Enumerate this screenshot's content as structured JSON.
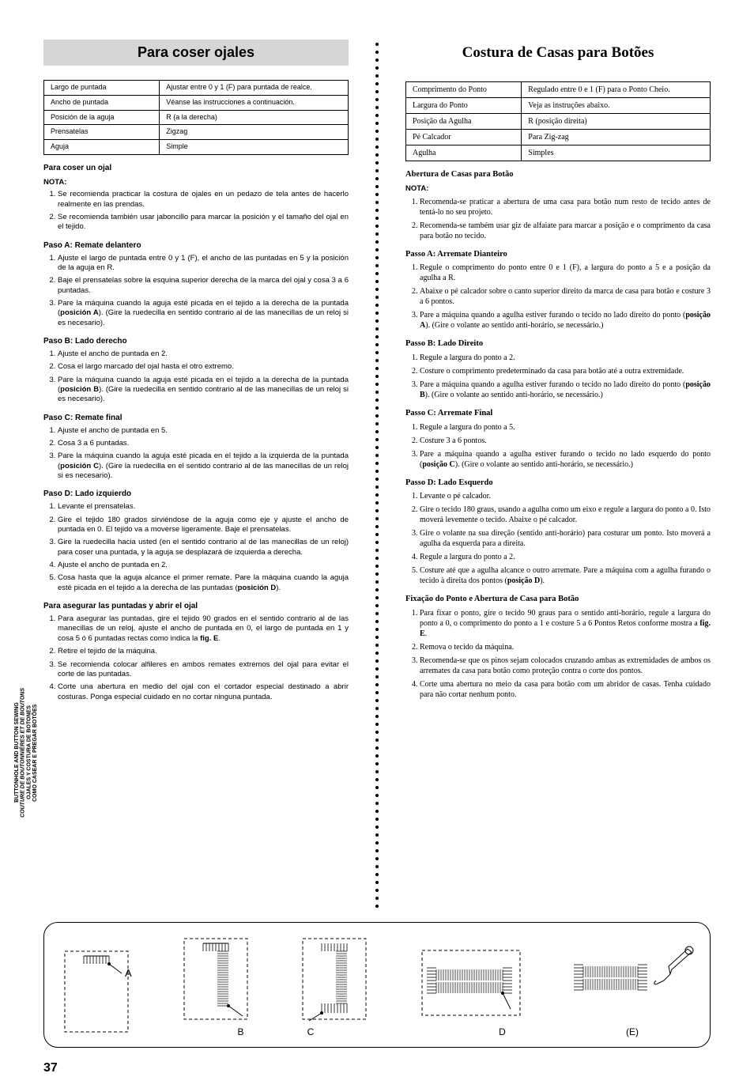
{
  "side_tab": {
    "l1": "BUTTONHOLE AND BUTTON SEWING",
    "l2": "COUTURE DE BOUTONNIÈRES ET DE BOUTONS",
    "l3": "OJALES Y COSTURA DE BOTONES",
    "l4": "COMO CASEAR E PREGAR BOTÕES"
  },
  "es": {
    "title": "Para coser ojales",
    "table": {
      "r1c1": "Largo de puntada",
      "r1c2": "Ajustar entre 0 y 1 (F) para puntada de realce.",
      "r2c1": "Ancho de puntada",
      "r2c2": "Véanse las instrucciones a continuación.",
      "r3c1": "Posición de la aguja",
      "r3c2": "R (a la derecha)",
      "r4c1": "Prensatelas",
      "r4c2": "Zigzag",
      "r5c1": "Aguja",
      "r5c2": "Simple"
    },
    "h_intro": "Para coser un ojal",
    "note": "NOTA:",
    "nota1": "Se recomienda practicar la costura de ojales en un pedazo de tela antes de hacerlo realmente en las prendas.",
    "nota2": "Se recomienda también usar jaboncillo para marcar la posición y el tamaño del ojal en el tejido.",
    "hA": "Paso A: Remate delantero",
    "A1": "Ajuste el largo de puntada entre 0 y 1 (F), el ancho de las puntadas en 5 y la posición de la aguja en R.",
    "A2": "Baje el prensatelas sobre la esquina superior derecha de la marca del ojal y cosa 3 a 6 puntadas.",
    "A3": "Pare la máquina cuando la aguja esté picada en el tejido a la derecha de la puntada (posición A). (Gire la ruedecilla en sentido contrario al de las manecillas de un reloj si es necesario).",
    "hB": "Paso B: Lado derecho",
    "B1": "Ajuste el ancho de puntada en 2.",
    "B2": "Cosa el largo marcado del ojal hasta el otro extremo.",
    "B3": "Pare la máquina cuando la aguja esté picada en el tejido a la derecha de la puntada (posición B). (Gire la ruedecilla en sentido contrario al de las manecillas de un reloj si es necesario).",
    "hC": "Paso C: Remate final",
    "C1": "Ajuste el ancho de puntada en 5.",
    "C2": "Cosa 3 a 6 puntadas.",
    "C3": "Pare la máquina cuando la aguja esté picada en el tejido a la izquierda de la puntada (posición C). (Gire la ruedecilla en el sentido contrario al de las manecillas de un reloj si es necesario).",
    "hD": "Paso D: Lado izquierdo",
    "D1": "Levante el prensatelas.",
    "D2": "Gire el tejido 180 grados sirviéndose de la aguja como eje y ajuste el ancho de puntada en 0. El tejido va a moverse ligeramente. Baje el prensatelas.",
    "D3": "Gire la ruedecilla hacia usted (en el sentido contrario al de las manecillas de un reloj) para coser una puntada, y la aguja se desplazará de izquierda a  derecha.",
    "D4": "Ajuste el ancho de puntada en 2.",
    "D5": "Cosa hasta que la aguja alcance el primer remate. Pare la máquina cuando la aguja esté picada en el tejido a la derecha de las puntadas (posición D).",
    "hE": "Para asegurar las puntadas y abrir el ojal",
    "E1": "Para asegurar las puntadas, gire el tejido 90 grados en el sentido contrario al de las manecillas de un reloj, ajuste el ancho de puntada en 0, el largo de puntada en 1 y cosa 5 ó 6 puntadas rectas como indica la fig. E.",
    "E2": "Retire el tejido de la máquina.",
    "E3": "Se recomienda colocar alfileres en ambos remates extremos del ojal para evitar el corte de las puntadas.",
    "E4": "Corte una abertura en medio del ojal con el cortador especial destinado a abrir costuras. Ponga especial cuidado en no cortar ninguna puntada."
  },
  "pt": {
    "title": "Costura de Casas para Botões",
    "table": {
      "r1c1": "Comprimento do Ponto",
      "r1c2": "Regulado entre  0 e 1 (F) para o Ponto Cheio.",
      "r2c1": "Largura do Ponto",
      "r2c2": "Veja as instruções abaixo.",
      "r3c1": "Posição da Agulha",
      "r3c2": "R (posição direita)",
      "r4c1": "Pé Calcador",
      "r4c2": "Para Zig-zag",
      "r5c1": "Agulha",
      "r5c2": "Simples"
    },
    "h_intro": "Abertura de Casas para Botão",
    "note": "NOTA:",
    "nota1": "Recomenda-se praticar a abertura de uma casa para botão num resto de tecido antes de tentá-lo no seu projeto.",
    "nota2": "Recomenda-se também usar giz de alfaiate para marcar a posição e o comprimento da casa para botão no tecido.",
    "hA": "Passo A: Arremate Dianteiro",
    "A1": "Regule o comprimento do ponto entre 0 e 1 (F), a largura do ponto a 5 e a posição da agulha a R.",
    "A2": "Abaixe o pé calcador sobre o canto superior direito da marca de casa para botão e costure 3 a 6 pontos.",
    "A3": "Pare a máquina quando a agulha estiver furando o tecido no lado direito do ponto (posição A). (Gire o volante ao sentido anti-horário, se necessário.)",
    "hB": "Passo B: Lado Direito",
    "B1": "Regule a largura do ponto a 2.",
    "B2": "Costure o comprimento predeterminado da casa para botão até a outra extremidade.",
    "B3": "Pare a máquina quando a agulha estiver furando o tecido no lado direito do ponto (posição B). (Gire o volante ao sentido anti-horário, se necessário.)",
    "hC": "Passo C: Arremate Final",
    "C1": "Regule a largura do ponto a 5.",
    "C2": "Costure 3 a 6 pontos.",
    "C3": "Pare a máquina quando a agulha estiver furando o tecido no lado esquerdo do ponto (posição C). (Gire o volante ao sentido anti-horário, se necessário.)",
    "hD": "Passo D: Lado Esquerdo",
    "D1": "Levante o pé calcador.",
    "D2": "Gire o tecido 180 graus, usando a agulha como um eixo e regule a largura do ponto a 0. Isto moverá levemente o tecido. Abaixe o pé calcador.",
    "D3": "Gire o volante na sua direção (sentido anti-horário) para costurar um ponto. Isto moverá a agulha da esquerda para a direita.",
    "D4": "Regule a largura do ponto a 2.",
    "D5": "Costure até que a agulha alcance o outro arremate. Pare a máquina com a agulha furando o tecido à direita dos pontos (posição D).",
    "hE": "Fixação do Ponto e Abertura de Casa para Botão",
    "E1": "Para fixar o ponto, gire o tecido 90 graus para o sentido anti-horário, regule a largura do ponto a 0, o comprimento do ponto a 1 e costure 5 a 6 Pontos Retos conforme mostra a fig. E.",
    "E2": "Remova o tecido da máquina.",
    "E3": "Recomenda-se que os pinos sejam colocados cruzando ambas as extremidades de ambos os arremates da casa para botão como proteção contra o corte dos pontos.",
    "E4": "Corte uma abertura no meio da casa para botão com um abridor de casas. Tenha cuidado para não cortar nenhum ponto."
  },
  "labels": {
    "A": "A",
    "B": "B",
    "C": "C",
    "D": "D",
    "E": "(E)"
  },
  "page": "37"
}
